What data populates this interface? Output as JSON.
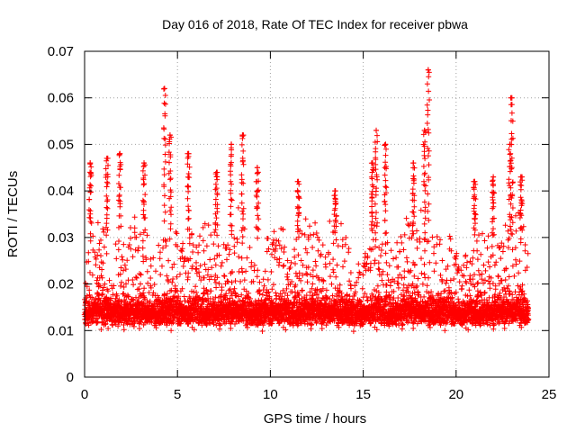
{
  "chart_data": {
    "type": "scatter",
    "title": "Day 016 of 2018, Rate Of TEC Index for receiver pbwa",
    "xlabel": "GPS time / hours",
    "ylabel": "ROTI / TECUs",
    "xlim": [
      0,
      25
    ],
    "ylim": [
      0,
      0.07
    ],
    "xticks": [
      "0",
      "5",
      "10",
      "15",
      "20",
      "25"
    ],
    "yticks": [
      "0",
      "0.01",
      "0.02",
      "0.03",
      "0.04",
      "0.05",
      "0.06",
      "0.07"
    ],
    "grid": true,
    "marker": "+",
    "color": "#ff0000",
    "series": [
      {
        "name": "ROTI",
        "x_range": [
          0,
          23.9
        ],
        "typical_range": [
          0.005,
          0.035
        ],
        "sample_count": 5000,
        "peaks": [
          {
            "x": 0.3,
            "y": 0.046
          },
          {
            "x": 1.2,
            "y": 0.047
          },
          {
            "x": 1.9,
            "y": 0.048
          },
          {
            "x": 3.2,
            "y": 0.046
          },
          {
            "x": 4.3,
            "y": 0.062
          },
          {
            "x": 4.6,
            "y": 0.052
          },
          {
            "x": 5.6,
            "y": 0.048
          },
          {
            "x": 7.1,
            "y": 0.044
          },
          {
            "x": 7.9,
            "y": 0.05
          },
          {
            "x": 8.5,
            "y": 0.052
          },
          {
            "x": 9.3,
            "y": 0.045
          },
          {
            "x": 11.5,
            "y": 0.042
          },
          {
            "x": 13.5,
            "y": 0.04
          },
          {
            "x": 15.5,
            "y": 0.046
          },
          {
            "x": 15.7,
            "y": 0.053
          },
          {
            "x": 16.2,
            "y": 0.05
          },
          {
            "x": 17.7,
            "y": 0.046
          },
          {
            "x": 18.3,
            "y": 0.053
          },
          {
            "x": 18.5,
            "y": 0.066
          },
          {
            "x": 21.0,
            "y": 0.042
          },
          {
            "x": 22.0,
            "y": 0.043
          },
          {
            "x": 22.9,
            "y": 0.05
          },
          {
            "x": 23.0,
            "y": 0.06
          },
          {
            "x": 23.5,
            "y": 0.043
          }
        ]
      }
    ]
  }
}
